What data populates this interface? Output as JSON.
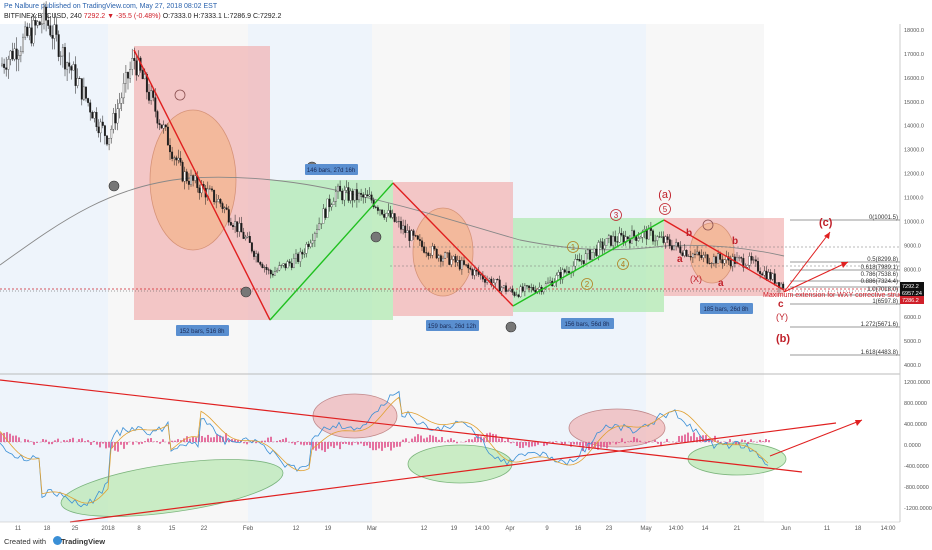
{
  "header": {
    "line1": "Pe Nalbure published on TradingView.com, May 27, 2018 08:02 EST",
    "symbol": "BITFINEX:BTCUSD, 240",
    "change": "7292.2 ▼ -35.5 (-0.48%)",
    "ohlc": "O:7333.0 H:7333.1 L:7286.9 C:7292.2"
  },
  "footer": {
    "created_with": "Created with",
    "brand": "TradingView"
  },
  "price_axis_labels": [
    "18000.0",
    "17000.0",
    "16000.0",
    "15000.0",
    "14000.0",
    "13000.0",
    "12000.0",
    "11000.0",
    "10000.0",
    "9000.0",
    "8000.0",
    "7000.0",
    "6000.0",
    "5000.0",
    "4000.0"
  ],
  "price_tags": [
    {
      "value": 7292.2,
      "text": "7292.2",
      "color": "#111111"
    },
    {
      "value": 6957.24,
      "text": "6957.24",
      "color": "#111111"
    },
    {
      "value": 7286.2,
      "text": "7286.2",
      "color": "#d0202a"
    }
  ],
  "osc_axis_labels": [
    "1200.0000",
    "800.0000",
    "400.0000",
    "0.0000",
    "-400.0000",
    "-800.0000",
    "-1200.0000"
  ],
  "x_labels": [
    "11",
    "18",
    "25",
    "2018",
    "8",
    "15",
    "22",
    "Feb",
    "12",
    "19",
    "Mar",
    "12",
    "19",
    "14:00",
    "Apr",
    "9",
    "16",
    "23",
    "May",
    "14:00",
    "14",
    "21",
    "Jun",
    "11",
    "18",
    "14:00"
  ],
  "bar_boxes": [
    "152 bars, 516 8h",
    "146 bars, 27d 16h",
    "159 bars, 26d 12h",
    "156 bars, 56d 8h",
    "185 bars, 26d 8h"
  ],
  "wave_labels": {
    "a_paren": "(a)",
    "b_paren": "(b)",
    "c_paren": "(c)",
    "five": "5",
    "three": "3",
    "one": "1",
    "two": "2",
    "four": "4",
    "b_small": "b",
    "a_small": "a",
    "c_small": "c",
    "y_paren": "(Y)",
    "x_paren": "(X)"
  },
  "fib_labels": [
    "0(10001.5)",
    "0.5(8299.8)",
    "0.618(7989.1)",
    "0.786(7538.6)",
    "0.886(7324.4)",
    "1.0(7018.0)",
    "1(6597.8)",
    "1.272(5671.6)",
    "1.618(4483.8)"
  ],
  "annotation": "Maximum extension for WXY corrective structure",
  "chart_data": {
    "type": "line",
    "title": "BITFINEX:BTCUSD, 240",
    "xlabel": "",
    "ylabel": "",
    "ylim": [
      3800,
      19200
    ],
    "series": [
      {
        "name": "BTCUSD",
        "x": [
          "Dec 11",
          "Dec 18",
          "Dec 25",
          "2018",
          "Jan 8",
          "Jan 15",
          "Jan 22",
          "Feb",
          "Feb 12",
          "Feb 19",
          "Mar",
          "Mar 12",
          "Mar 19",
          "Apr",
          "Apr 9",
          "Apr 16",
          "Apr 23",
          "May",
          "May 14",
          "May 21",
          "May 27"
        ],
        "values": [
          16500,
          18500,
          14000,
          13500,
          16800,
          12000,
          10800,
          7800,
          8500,
          11200,
          10900,
          9000,
          8200,
          7000,
          7300,
          8200,
          9200,
          9500,
          8500,
          8300,
          7292
        ]
      }
    ]
  }
}
